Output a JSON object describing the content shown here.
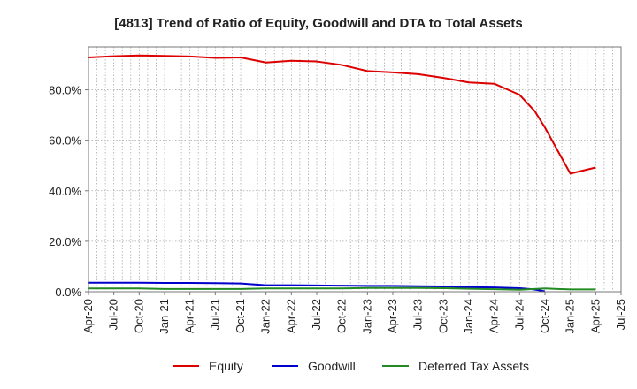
{
  "chart_data": {
    "type": "line",
    "title": "[4813]  Trend of Ratio of Equity, Goodwill and DTA to Total Assets",
    "xlabel": "",
    "ylabel": "",
    "ylim": [
      0,
      97
    ],
    "yticks": [
      0,
      20,
      40,
      60,
      80
    ],
    "ytick_labels": [
      "0.0%",
      "20.0%",
      "40.0%",
      "60.0%",
      "80.0%"
    ],
    "x_tick_labels": [
      "Apr-20",
      "Jul-20",
      "Oct-20",
      "Jan-21",
      "Apr-21",
      "Jul-21",
      "Oct-21",
      "Jan-22",
      "Apr-22",
      "Jul-22",
      "Oct-22",
      "Jan-23",
      "Apr-23",
      "Jul-23",
      "Oct-23",
      "Jan-24",
      "Apr-24",
      "Jul-24",
      "Oct-24",
      "Jan-25",
      "Apr-25",
      "Jul-25"
    ],
    "grid": true,
    "legend_position": "bottom",
    "series": [
      {
        "name": "Equity",
        "color": "#dd0000",
        "points": [
          [
            0,
            92.8
          ],
          [
            1,
            93.3
          ],
          [
            2,
            93.6
          ],
          [
            3,
            93.4
          ],
          [
            4,
            93.2
          ],
          [
            5,
            92.6
          ],
          [
            6,
            92.8
          ],
          [
            7,
            90.8
          ],
          [
            8,
            91.5
          ],
          [
            9,
            91.2
          ],
          [
            10,
            89.8
          ],
          [
            11,
            87.4
          ],
          [
            12,
            86.9
          ],
          [
            13,
            86.2
          ],
          [
            14,
            84.7
          ],
          [
            15,
            82.9
          ],
          [
            16,
            82.4
          ],
          [
            17,
            78.0
          ],
          [
            17.6,
            71.5
          ],
          [
            18,
            65.0
          ],
          [
            19,
            46.8
          ],
          [
            20,
            49.2
          ]
        ]
      },
      {
        "name": "Goodwill",
        "color": "#0000cc",
        "points": [
          [
            0,
            3.6
          ],
          [
            1,
            3.6
          ],
          [
            2,
            3.6
          ],
          [
            3,
            3.5
          ],
          [
            4,
            3.5
          ],
          [
            5,
            3.4
          ],
          [
            6,
            3.3
          ],
          [
            7,
            2.6
          ],
          [
            8,
            2.6
          ],
          [
            9,
            2.5
          ],
          [
            10,
            2.4
          ],
          [
            11,
            2.3
          ],
          [
            12,
            2.3
          ],
          [
            13,
            2.2
          ],
          [
            14,
            2.1
          ],
          [
            15,
            1.8
          ],
          [
            16,
            1.7
          ],
          [
            17,
            1.4
          ],
          [
            17.5,
            1.0
          ],
          [
            18,
            0.2
          ]
        ]
      },
      {
        "name": "Deferred Tax Assets",
        "color": "#228b22",
        "points": [
          [
            0,
            1.3
          ],
          [
            1,
            1.3
          ],
          [
            2,
            1.3
          ],
          [
            3,
            1.1
          ],
          [
            4,
            1.1
          ],
          [
            5,
            1.1
          ],
          [
            6,
            1.1
          ],
          [
            7,
            1.3
          ],
          [
            8,
            1.3
          ],
          [
            9,
            1.3
          ],
          [
            10,
            1.3
          ],
          [
            11,
            1.5
          ],
          [
            12,
            1.5
          ],
          [
            13,
            1.5
          ],
          [
            14,
            1.4
          ],
          [
            15,
            1.2
          ],
          [
            16,
            1.0
          ],
          [
            17,
            0.8
          ],
          [
            18,
            1.3
          ],
          [
            19,
            0.9
          ],
          [
            20,
            0.9
          ]
        ]
      }
    ]
  }
}
